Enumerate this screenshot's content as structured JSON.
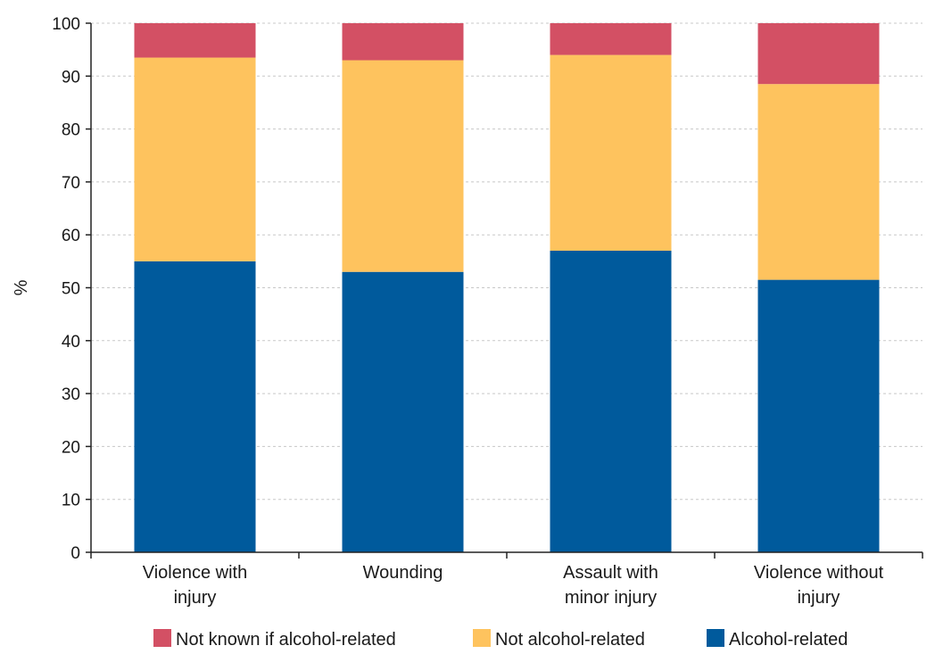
{
  "chart_data": {
    "type": "bar",
    "stacked": true,
    "title": "",
    "xlabel": "",
    "ylabel": "%",
    "ylim": [
      0,
      100
    ],
    "yticks": [
      0,
      10,
      20,
      30,
      40,
      50,
      60,
      70,
      80,
      90,
      100
    ],
    "grid": true,
    "legend_position": "bottom",
    "categories": [
      [
        "Violence with",
        "injury"
      ],
      [
        "Wounding"
      ],
      [
        "Assault with",
        "minor injury"
      ],
      [
        "Violence without",
        "injury"
      ]
    ],
    "series": [
      {
        "name": "Alcohol-related",
        "color": "#005a9c",
        "values": [
          55,
          53,
          57,
          51.5
        ]
      },
      {
        "name": "Not alcohol-related",
        "color": "#fec35e",
        "values": [
          38.5,
          40,
          37,
          37
        ]
      },
      {
        "name": "Not known if alcohol-related",
        "color": "#d35064",
        "values": [
          6.5,
          7,
          6,
          11.5
        ]
      }
    ],
    "legend_order": [
      2,
      1,
      0
    ]
  }
}
